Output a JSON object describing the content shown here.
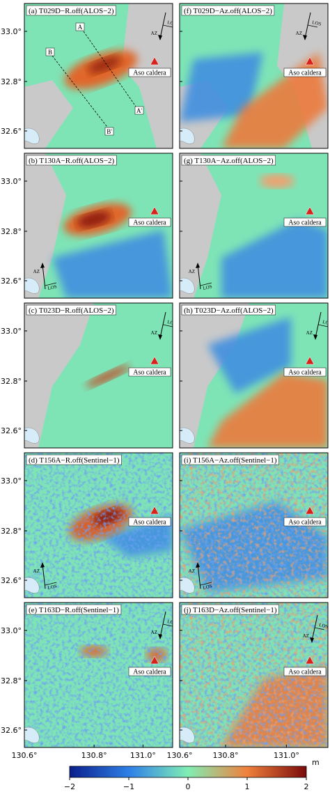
{
  "panels": [
    {
      "label": "(a) T029D−R.off(ALOS−2)"
    },
    {
      "label": "(b) T130A−R.off(ALOS−2)"
    },
    {
      "label": "(c) T023D−R.off(ALOS−2)"
    },
    {
      "label": "(d) T156A−R.off(Sentinel−1)"
    },
    {
      "label": "(e) T163D−R.off(Sentinel−1)"
    },
    {
      "label": "(f) T029D−Az.off(ALOS−2)"
    },
    {
      "label": "(g) T130A−Az.off(ALOS−2)"
    },
    {
      "label": "(h) T023D−Az.off(ALOS−2)"
    },
    {
      "label": "(i) T156A−Az.off(Sentinel−1)"
    },
    {
      "label": "(j) T163D−Az.off(Sentinel−1)"
    }
  ],
  "caldera_label": "Aso caldera",
  "azimuth_label": "AZ",
  "los_label": "LOS",
  "profiles": [
    {
      "start": "A",
      "end": "A'"
    },
    {
      "start": "B",
      "end": "B'"
    }
  ],
  "lat_ticks": [
    "33.0°",
    "32.8°",
    "32.6°"
  ],
  "lon_ticks": [
    "130.6°",
    "130.8°",
    "131.0°"
  ],
  "colorbar": {
    "ticks": [
      {
        "value": -2,
        "label": "−2"
      },
      {
        "value": -1,
        "label": "−1"
      },
      0,
      1,
      2
    ],
    "range": [
      -2,
      2
    ],
    "unit": "m"
  }
}
